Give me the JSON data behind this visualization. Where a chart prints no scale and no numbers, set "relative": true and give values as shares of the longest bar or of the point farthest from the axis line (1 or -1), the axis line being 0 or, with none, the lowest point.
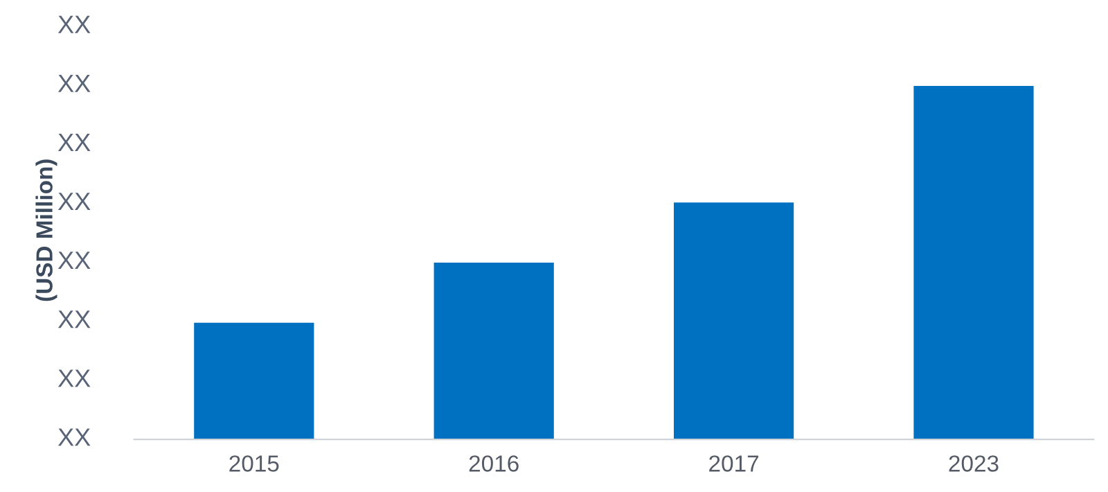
{
  "chart_data": {
    "type": "bar",
    "ylabel": "(USD Million)",
    "categories": [
      "2015",
      "2016",
      "2017",
      "2023"
    ],
    "values": [
      0.33,
      0.5,
      0.67,
      1
    ],
    "color": "#0070c0",
    "relative": true,
    "annotations": [
      "XX",
      "XX",
      "XX",
      "XX",
      "XX",
      "XX",
      "XX",
      "XX"
    ]
  }
}
